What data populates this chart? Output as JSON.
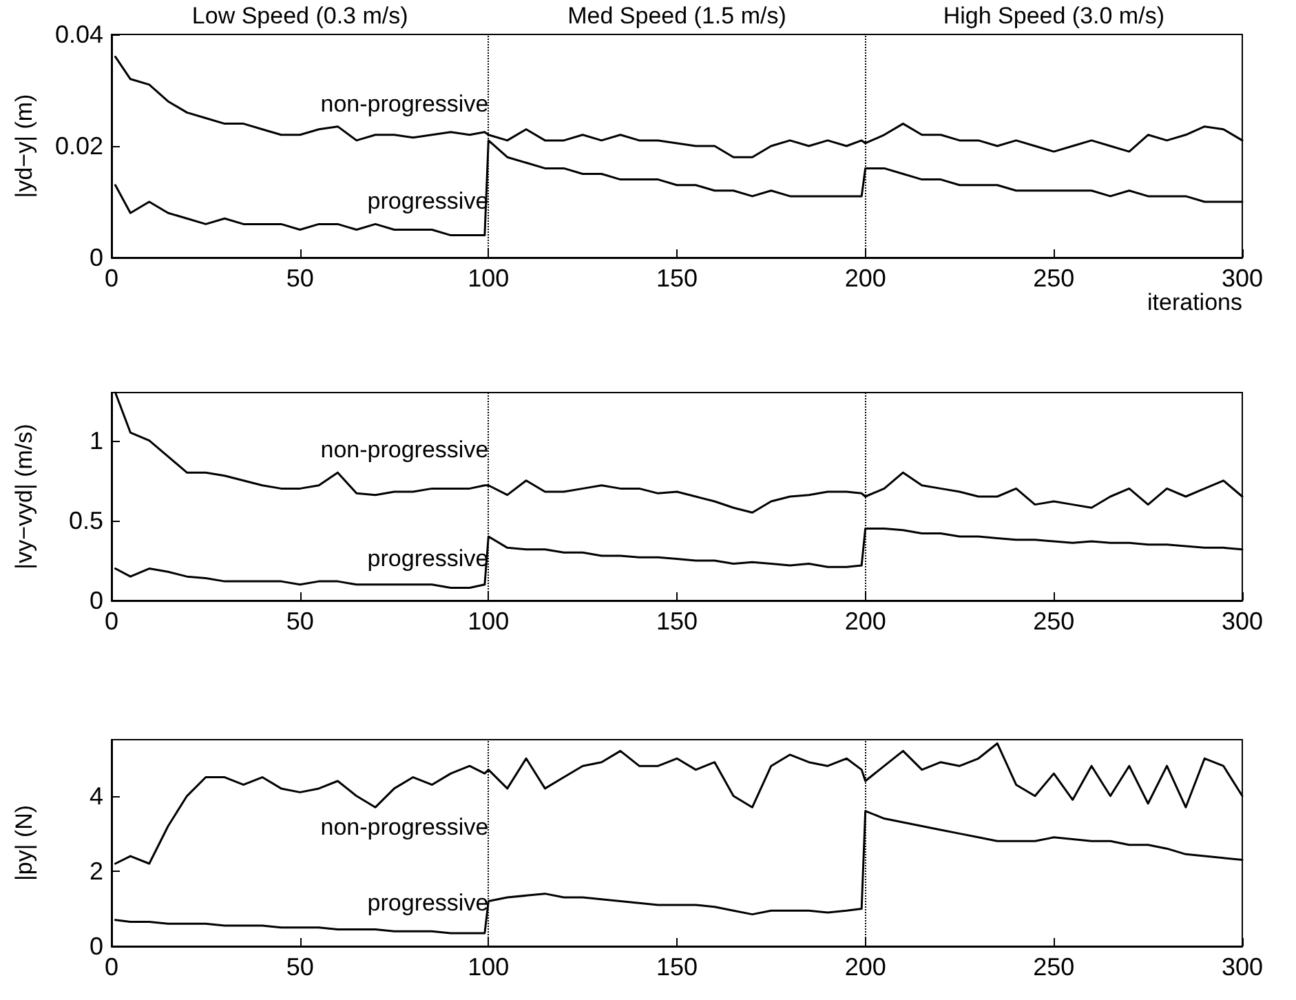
{
  "chart_data": [
    {
      "type": "line",
      "annotations": [
        "Low Speed (0.3 m/s)",
        "Med Speed (1.5 m/s)",
        "High Speed (3.0 m/s)"
      ],
      "xlabel": "iterations",
      "ylabel": "|yd−y| (m)",
      "grid": false,
      "marker": "none",
      "line_style": "solid",
      "x": [
        1,
        5,
        10,
        15,
        20,
        25,
        30,
        35,
        40,
        45,
        50,
        55,
        60,
        65,
        70,
        75,
        80,
        85,
        90,
        95,
        99,
        100,
        105,
        110,
        115,
        120,
        125,
        130,
        135,
        140,
        145,
        150,
        155,
        160,
        165,
        170,
        175,
        180,
        185,
        190,
        195,
        199,
        200,
        205,
        210,
        215,
        220,
        225,
        230,
        235,
        240,
        245,
        250,
        255,
        260,
        265,
        270,
        275,
        280,
        285,
        290,
        295,
        300
      ],
      "xlim": [
        0,
        300
      ],
      "xticks": [
        0,
        50,
        100,
        150,
        200,
        250,
        300
      ],
      "ylim": [
        0,
        0.04
      ],
      "yticks": [
        0,
        0.02,
        0.04
      ],
      "ref_lines": [
        {
          "axis": "x",
          "value": 100,
          "color": "#000000",
          "line_style": "dotted"
        },
        {
          "axis": "x",
          "value": 200,
          "color": "#000000",
          "line_style": "dotted"
        }
      ],
      "series": [
        {
          "name": "non-progressive",
          "color": "#000000",
          "values": [
            0.036,
            0.032,
            0.031,
            0.028,
            0.026,
            0.025,
            0.024,
            0.024,
            0.023,
            0.022,
            0.022,
            0.023,
            0.0235,
            0.021,
            0.022,
            0.022,
            0.0215,
            0.022,
            0.0225,
            0.022,
            0.0225,
            0.022,
            0.021,
            0.023,
            0.021,
            0.021,
            0.022,
            0.021,
            0.022,
            0.021,
            0.021,
            0.0205,
            0.02,
            0.02,
            0.018,
            0.018,
            0.02,
            0.021,
            0.02,
            0.021,
            0.02,
            0.021,
            0.0205,
            0.022,
            0.024,
            0.022,
            0.022,
            0.021,
            0.021,
            0.02,
            0.021,
            0.02,
            0.019,
            0.02,
            0.021,
            0.02,
            0.019,
            0.022,
            0.021,
            0.022,
            0.0235,
            0.023,
            0.021
          ]
        },
        {
          "name": "progressive",
          "color": "#000000",
          "values": [
            0.013,
            0.008,
            0.01,
            0.008,
            0.007,
            0.006,
            0.007,
            0.006,
            0.006,
            0.006,
            0.005,
            0.006,
            0.006,
            0.005,
            0.006,
            0.005,
            0.005,
            0.005,
            0.004,
            0.004,
            0.004,
            0.021,
            0.018,
            0.017,
            0.016,
            0.016,
            0.015,
            0.015,
            0.014,
            0.014,
            0.014,
            0.013,
            0.013,
            0.012,
            0.012,
            0.011,
            0.012,
            0.011,
            0.011,
            0.011,
            0.011,
            0.011,
            0.016,
            0.016,
            0.015,
            0.014,
            0.014,
            0.013,
            0.013,
            0.013,
            0.012,
            0.012,
            0.012,
            0.012,
            0.012,
            0.011,
            0.012,
            0.011,
            0.011,
            0.011,
            0.01,
            0.01,
            0.01
          ]
        }
      ]
    },
    {
      "type": "line",
      "ylabel": "|vy−vyd| (m/s)",
      "grid": false,
      "marker": "none",
      "line_style": "solid",
      "x": [
        1,
        5,
        10,
        15,
        20,
        25,
        30,
        35,
        40,
        45,
        50,
        55,
        60,
        65,
        70,
        75,
        80,
        85,
        90,
        95,
        99,
        100,
        105,
        110,
        115,
        120,
        125,
        130,
        135,
        140,
        145,
        150,
        155,
        160,
        165,
        170,
        175,
        180,
        185,
        190,
        195,
        199,
        200,
        205,
        210,
        215,
        220,
        225,
        230,
        235,
        240,
        245,
        250,
        255,
        260,
        265,
        270,
        275,
        280,
        285,
        290,
        295,
        300
      ],
      "xlim": [
        0,
        300
      ],
      "xticks": [
        0,
        50,
        100,
        150,
        200,
        250,
        300
      ],
      "ylim": [
        0,
        1.3
      ],
      "yticks": [
        0,
        0.5,
        1
      ],
      "ref_lines": [
        {
          "axis": "x",
          "value": 100,
          "color": "#000000",
          "line_style": "dotted"
        },
        {
          "axis": "x",
          "value": 200,
          "color": "#000000",
          "line_style": "dotted"
        }
      ],
      "series": [
        {
          "name": "non-progressive",
          "color": "#000000",
          "values": [
            1.3,
            1.05,
            1.0,
            0.9,
            0.8,
            0.8,
            0.78,
            0.75,
            0.72,
            0.7,
            0.7,
            0.72,
            0.8,
            0.67,
            0.66,
            0.68,
            0.68,
            0.7,
            0.7,
            0.7,
            0.72,
            0.72,
            0.66,
            0.75,
            0.68,
            0.68,
            0.7,
            0.72,
            0.7,
            0.7,
            0.67,
            0.68,
            0.65,
            0.62,
            0.58,
            0.55,
            0.62,
            0.65,
            0.66,
            0.68,
            0.68,
            0.67,
            0.65,
            0.7,
            0.8,
            0.72,
            0.7,
            0.68,
            0.65,
            0.65,
            0.7,
            0.6,
            0.62,
            0.6,
            0.58,
            0.65,
            0.7,
            0.6,
            0.7,
            0.65,
            0.7,
            0.75,
            0.65
          ]
        },
        {
          "name": "progressive",
          "color": "#000000",
          "values": [
            0.2,
            0.15,
            0.2,
            0.18,
            0.15,
            0.14,
            0.12,
            0.12,
            0.12,
            0.12,
            0.1,
            0.12,
            0.12,
            0.1,
            0.1,
            0.1,
            0.1,
            0.1,
            0.08,
            0.08,
            0.1,
            0.4,
            0.33,
            0.32,
            0.32,
            0.3,
            0.3,
            0.28,
            0.28,
            0.27,
            0.27,
            0.26,
            0.25,
            0.25,
            0.23,
            0.24,
            0.23,
            0.22,
            0.23,
            0.21,
            0.21,
            0.22,
            0.45,
            0.45,
            0.44,
            0.42,
            0.42,
            0.4,
            0.4,
            0.39,
            0.38,
            0.38,
            0.37,
            0.36,
            0.37,
            0.36,
            0.36,
            0.35,
            0.35,
            0.34,
            0.33,
            0.33,
            0.32
          ]
        }
      ]
    },
    {
      "type": "line",
      "ylabel": "|py| (N)",
      "grid": false,
      "marker": "none",
      "line_style": "solid",
      "x": [
        1,
        5,
        10,
        15,
        20,
        25,
        30,
        35,
        40,
        45,
        50,
        55,
        60,
        65,
        70,
        75,
        80,
        85,
        90,
        95,
        99,
        100,
        105,
        110,
        115,
        120,
        125,
        130,
        135,
        140,
        145,
        150,
        155,
        160,
        165,
        170,
        175,
        180,
        185,
        190,
        195,
        199,
        200,
        205,
        210,
        215,
        220,
        225,
        230,
        235,
        240,
        245,
        250,
        255,
        260,
        265,
        270,
        275,
        280,
        285,
        290,
        295,
        300
      ],
      "xlim": [
        0,
        300
      ],
      "xticks": [
        0,
        50,
        100,
        150,
        200,
        250,
        300
      ],
      "ylim": [
        0,
        5.5
      ],
      "yticks": [
        0,
        2,
        4
      ],
      "ref_lines": [
        {
          "axis": "x",
          "value": 100,
          "color": "#000000",
          "line_style": "dotted"
        },
        {
          "axis": "x",
          "value": 200,
          "color": "#000000",
          "line_style": "dotted"
        }
      ],
      "series": [
        {
          "name": "non-progressive",
          "color": "#000000",
          "values": [
            2.2,
            2.4,
            2.2,
            3.2,
            4.0,
            4.5,
            4.5,
            4.3,
            4.5,
            4.2,
            4.1,
            4.2,
            4.4,
            4.0,
            3.7,
            4.2,
            4.5,
            4.3,
            4.6,
            4.8,
            4.6,
            4.7,
            4.2,
            5.0,
            4.2,
            4.5,
            4.8,
            4.9,
            5.2,
            4.8,
            4.8,
            5.0,
            4.7,
            4.9,
            4.0,
            3.7,
            4.8,
            5.1,
            4.9,
            4.8,
            5.0,
            4.7,
            4.4,
            4.8,
            5.2,
            4.7,
            4.9,
            4.8,
            5.0,
            5.4,
            4.3,
            4.0,
            4.6,
            3.9,
            4.8,
            4.0,
            4.8,
            3.8,
            4.8,
            3.7,
            5.0,
            4.8,
            4.0
          ]
        },
        {
          "name": "progressive",
          "color": "#000000",
          "values": [
            0.7,
            0.65,
            0.65,
            0.6,
            0.6,
            0.6,
            0.55,
            0.55,
            0.55,
            0.5,
            0.5,
            0.5,
            0.45,
            0.45,
            0.45,
            0.4,
            0.4,
            0.4,
            0.35,
            0.35,
            0.35,
            1.2,
            1.3,
            1.35,
            1.4,
            1.3,
            1.3,
            1.25,
            1.2,
            1.15,
            1.1,
            1.1,
            1.1,
            1.05,
            0.95,
            0.85,
            0.95,
            0.95,
            0.95,
            0.9,
            0.95,
            1.0,
            3.6,
            3.4,
            3.3,
            3.2,
            3.1,
            3.0,
            2.9,
            2.8,
            2.8,
            2.8,
            2.9,
            2.85,
            2.8,
            2.8,
            2.7,
            2.7,
            2.6,
            2.45,
            2.4,
            2.35,
            2.3
          ]
        }
      ]
    }
  ]
}
